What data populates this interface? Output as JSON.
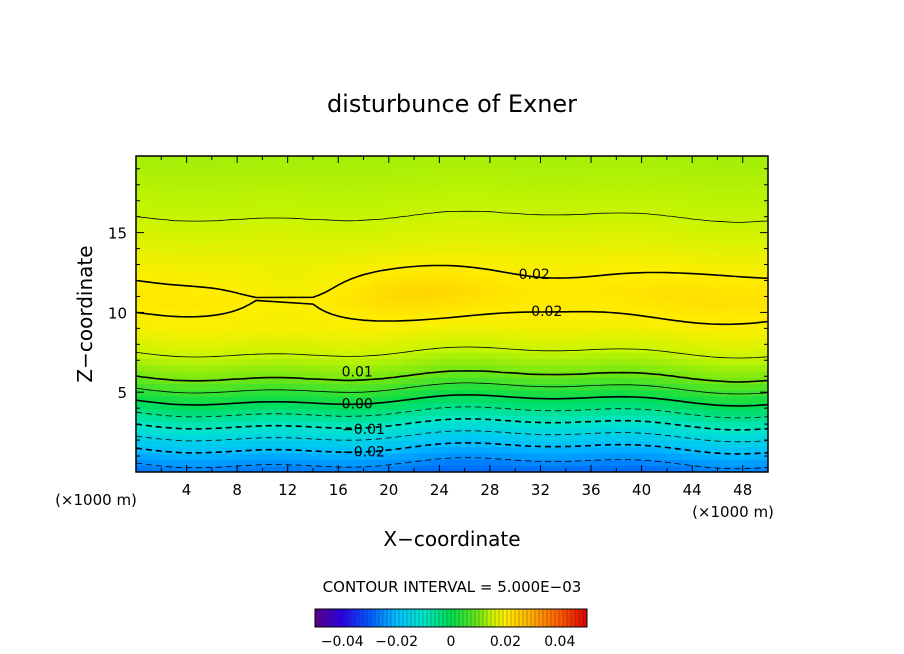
{
  "chart_data": {
    "type": "heatmap",
    "title": "disturbunce of Exner",
    "xlabel": "X−coordinate",
    "ylabel": "Z−coordinate",
    "x_unit": "(×1000 m)",
    "y_unit": "(×1000 m)",
    "xlim": [
      0,
      50
    ],
    "ylim": [
      0,
      19.8
    ],
    "xticks": [
      4,
      8,
      12,
      16,
      20,
      24,
      28,
      32,
      36,
      40,
      44,
      48
    ],
    "yticks": [
      5,
      10,
      15
    ],
    "contour_interval_text": "CONTOUR INTERVAL = 5.000E−03",
    "contour_interval": 0.005,
    "colorbar": {
      "range": [
        -0.05,
        0.05
      ],
      "ticks": [
        "−0.04",
        "−0.02",
        "0",
        "0.02",
        "0.04"
      ]
    },
    "contour_labels": [
      {
        "text": "0.02",
        "x": 31.5,
        "z": 12.4
      },
      {
        "text": "0.02",
        "x": 32.5,
        "z": 10.1
      },
      {
        "text": "0.01",
        "x": 17.5,
        "z": 6.3
      },
      {
        "text": "0.00",
        "x": 17.5,
        "z": 4.3
      },
      {
        "text": "−0.01",
        "x": 18.0,
        "z": 2.7
      },
      {
        "text": "−0.02",
        "x": 18.0,
        "z": 1.3
      }
    ],
    "field_profile": [
      {
        "z": 0.0,
        "value": -0.028
      },
      {
        "z": 1.5,
        "value": -0.02
      },
      {
        "z": 3.0,
        "value": -0.01
      },
      {
        "z": 4.5,
        "value": 0.0
      },
      {
        "z": 6.0,
        "value": 0.01
      },
      {
        "z": 7.5,
        "value": 0.015
      },
      {
        "z": 9.0,
        "value": 0.019
      },
      {
        "z": 11.0,
        "value": 0.021
      },
      {
        "z": 13.0,
        "value": 0.019
      },
      {
        "z": 16.0,
        "value": 0.015
      },
      {
        "z": 19.8,
        "value": 0.013
      }
    ]
  }
}
